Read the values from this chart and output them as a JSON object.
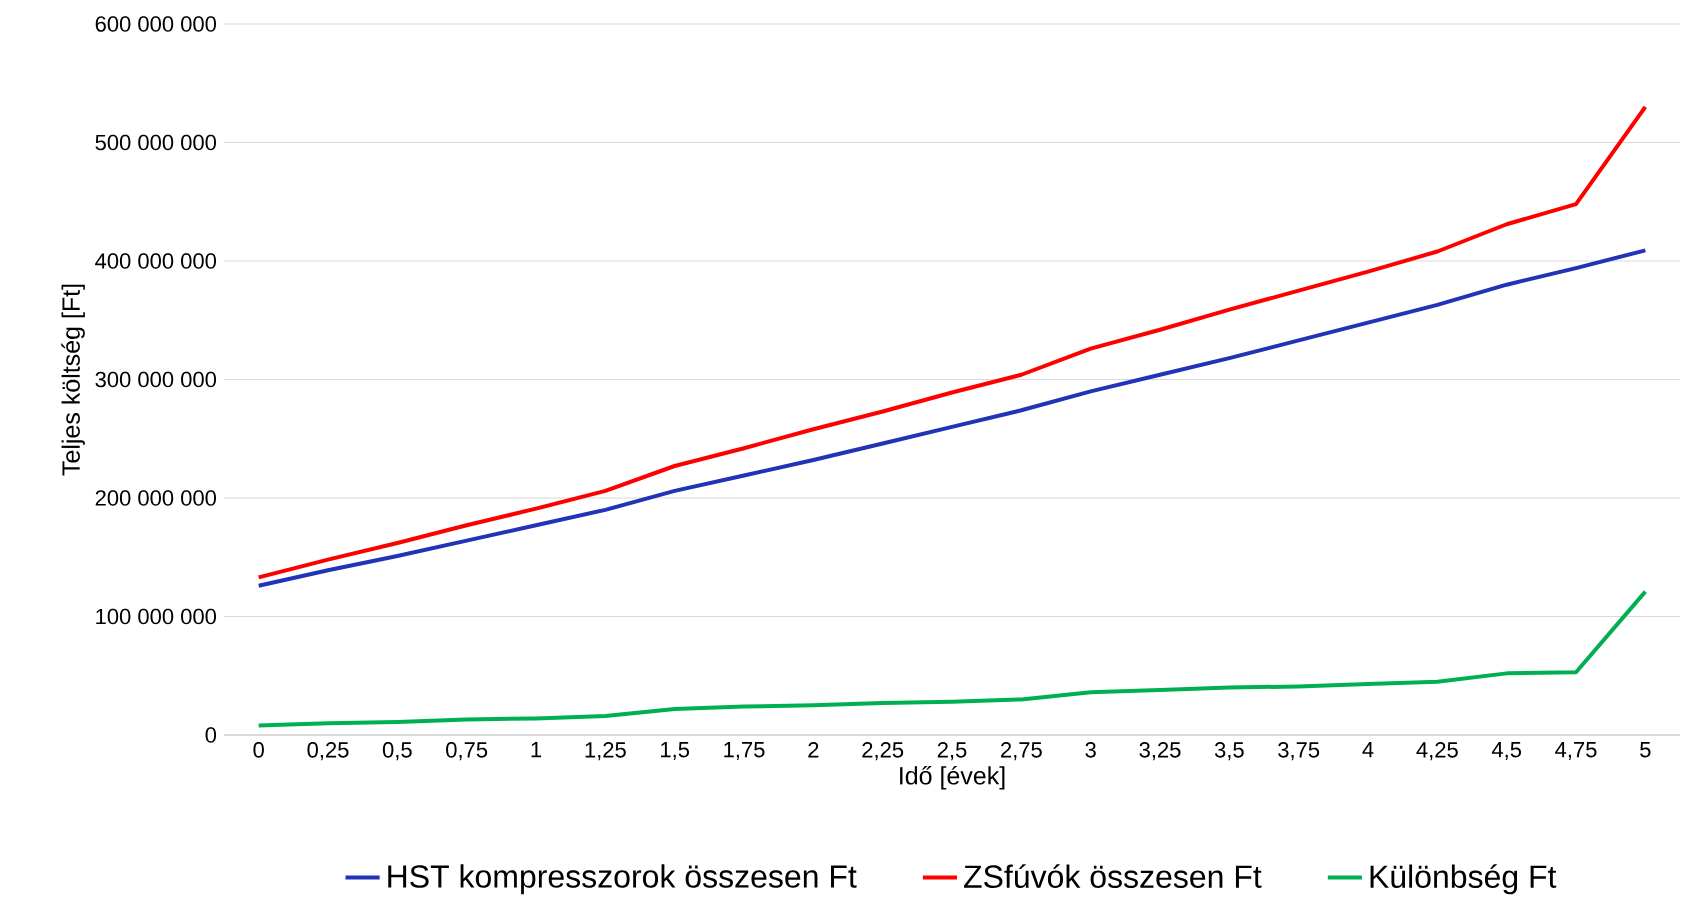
{
  "chart_data": {
    "type": "line",
    "xlabel": "Idő [évek]",
    "ylabel": "Teljes költség [Ft]",
    "categories": [
      "0",
      "0,25",
      "0,5",
      "0,75",
      "1",
      "1,25",
      "1,5",
      "1,75",
      "2",
      "2,25",
      "2,5",
      "2,75",
      "3",
      "3,25",
      "3,5",
      "3,75",
      "4",
      "4,25",
      "4,5",
      "4,75",
      "5"
    ],
    "series": [
      {
        "name": "HST kompresszorok összesen Ft",
        "color": "#2233b8",
        "values": [
          126000000,
          139000000,
          151000000,
          164000000,
          177000000,
          190000000,
          206000000,
          219000000,
          232000000,
          246000000,
          260000000,
          274000000,
          290000000,
          304000000,
          318000000,
          333000000,
          348000000,
          363000000,
          380000000,
          394000000,
          409000000
        ]
      },
      {
        "name": "ZSfúvók összesen Ft",
        "color": "#ff0000",
        "values": [
          133000000,
          148000000,
          162000000,
          177000000,
          191000000,
          206000000,
          227000000,
          242000000,
          258000000,
          273000000,
          289000000,
          304000000,
          326000000,
          342000000,
          359000000,
          375000000,
          391000000,
          408000000,
          431000000,
          448000000,
          530000000
        ]
      },
      {
        "name": "Különbség Ft",
        "color": "#00b050",
        "values": [
          8000000,
          10000000,
          11000000,
          13000000,
          14000000,
          16000000,
          22000000,
          24000000,
          25000000,
          27000000,
          28000000,
          30000000,
          36000000,
          38000000,
          40000000,
          41000000,
          43000000,
          45000000,
          52000000,
          53000000,
          121000000
        ]
      }
    ],
    "ylim": [
      0,
      600000000
    ],
    "yticks": [
      {
        "value": 0,
        "label": "0"
      },
      {
        "value": 100000000,
        "label": "100 000 000"
      },
      {
        "value": 200000000,
        "label": "200 000 000"
      },
      {
        "value": 300000000,
        "label": "300 000 000"
      },
      {
        "value": 400000000,
        "label": "400 000 000"
      },
      {
        "value": 500000000,
        "label": "500 000 000"
      },
      {
        "value": 600000000,
        "label": "600 000 000"
      }
    ],
    "grid": "y",
    "legend": "bottom",
    "marker": "none",
    "line_style": "solid"
  }
}
